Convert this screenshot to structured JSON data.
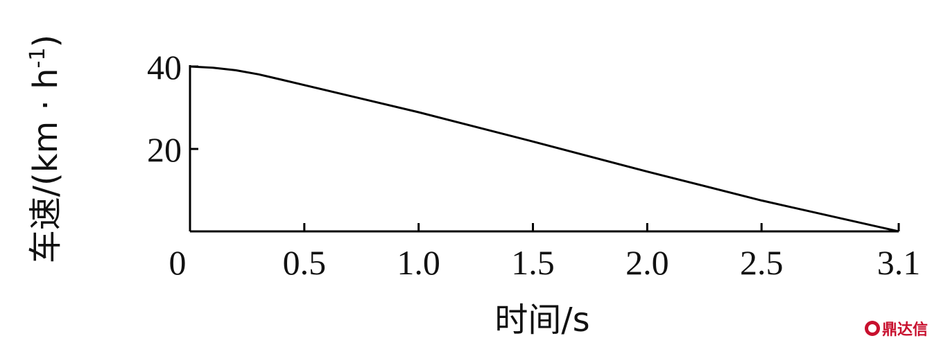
{
  "chart_data": {
    "type": "line",
    "xlabel": "时间/s",
    "ylabel": "车速/(km · h",
    "ylabel_sup": "-1",
    "ylabel_close": ")",
    "xlim": [
      0,
      3.1
    ],
    "ylim": [
      0,
      40
    ],
    "xticks": [
      0.5,
      1.0,
      1.5,
      2.0,
      2.5,
      3.1
    ],
    "xtick_labels": [
      "0.5",
      "1.0",
      "1.5",
      "2.0",
      "2.5",
      "3.1"
    ],
    "origin_label": "0",
    "yticks": [
      20,
      40
    ],
    "ytick_labels": [
      "20",
      "40"
    ],
    "grid": false,
    "series": [
      {
        "x": [
          0,
          0.1,
          0.2,
          0.3,
          0.4,
          0.5,
          1.0,
          1.5,
          2.0,
          2.5,
          3.1
        ],
        "values": [
          40,
          39.7,
          39.1,
          38.1,
          36.8,
          35.5,
          28.9,
          21.8,
          14.5,
          7.5,
          0
        ]
      }
    ],
    "colors": {
      "line": "#000000"
    }
  },
  "watermark": {
    "text": "鼎达信",
    "color": "#c8102e",
    "icon": "logo-circle-icon"
  }
}
